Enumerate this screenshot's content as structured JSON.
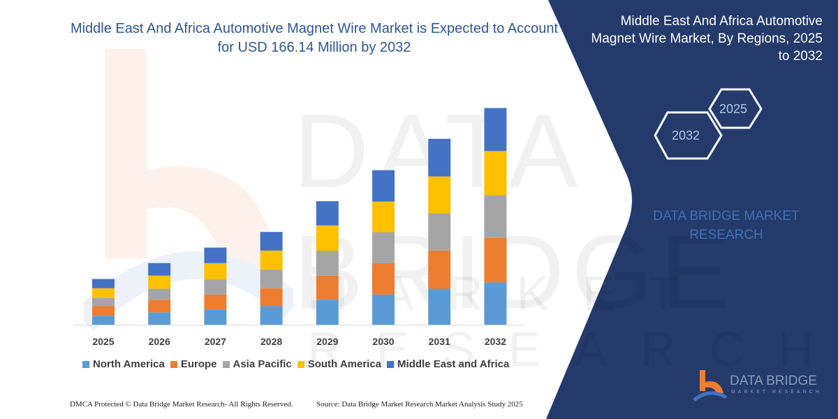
{
  "title": "Middle East And Africa Automotive Magnet Wire Market is Expected to Account for USD 166.14 Million by 2032",
  "side_panel": {
    "title": "Middle East And Africa Automotive Magnet Wire Market, By Regions, 2025 to 2032",
    "hex_start": "2025",
    "hex_end": "2032",
    "brand_text": "DATA BRIDGE MARKET RESEARCH",
    "logo_name": "DATA BRIDGE",
    "logo_sub": "MARKET RESEARCH",
    "background_color": "#233a6b"
  },
  "watermark": {
    "line1": "DATA BRIDGE",
    "line2": "MARKET RESEARCH"
  },
  "footer": {
    "left": "DMCA Protected © Data Bridge Market Research-  All Rights Reserved.",
    "right": "Source: Data Bridge Market Research  Market Analysis Study 2025"
  },
  "chart_data": {
    "type": "bar",
    "stacked": true,
    "categories": [
      "2025",
      "2026",
      "2027",
      "2028",
      "2029",
      "2030",
      "2031",
      "2032"
    ],
    "series": [
      {
        "name": "North America",
        "color": "#5b9bd5",
        "values": [
          6.6,
          9.5,
          11.6,
          14.3,
          19.1,
          23.2,
          27.6,
          32.5
        ]
      },
      {
        "name": "Europe",
        "color": "#ed7d31",
        "values": [
          7.6,
          9.6,
          11.6,
          13.7,
          18.6,
          24.1,
          29.3,
          34.1
        ]
      },
      {
        "name": "Asia Pacific",
        "color": "#a5a5a5",
        "values": [
          6.3,
          8.6,
          11.6,
          14.3,
          19.1,
          23.7,
          28.7,
          32.8
        ]
      },
      {
        "name": "South America",
        "color": "#ffc000",
        "values": [
          7.5,
          10.0,
          12.5,
          14.6,
          19.4,
          23.5,
          28.2,
          33.9
        ]
      },
      {
        "name": "Middle East and Africa",
        "color": "#4472c4",
        "values": [
          7.1,
          9.6,
          11.9,
          14.3,
          18.6,
          24.1,
          28.9,
          33.0
        ]
      }
    ],
    "ylim": [
      0,
      166.14
    ],
    "y_axis_visible": false,
    "grid": false,
    "legend_position": "bottom"
  }
}
